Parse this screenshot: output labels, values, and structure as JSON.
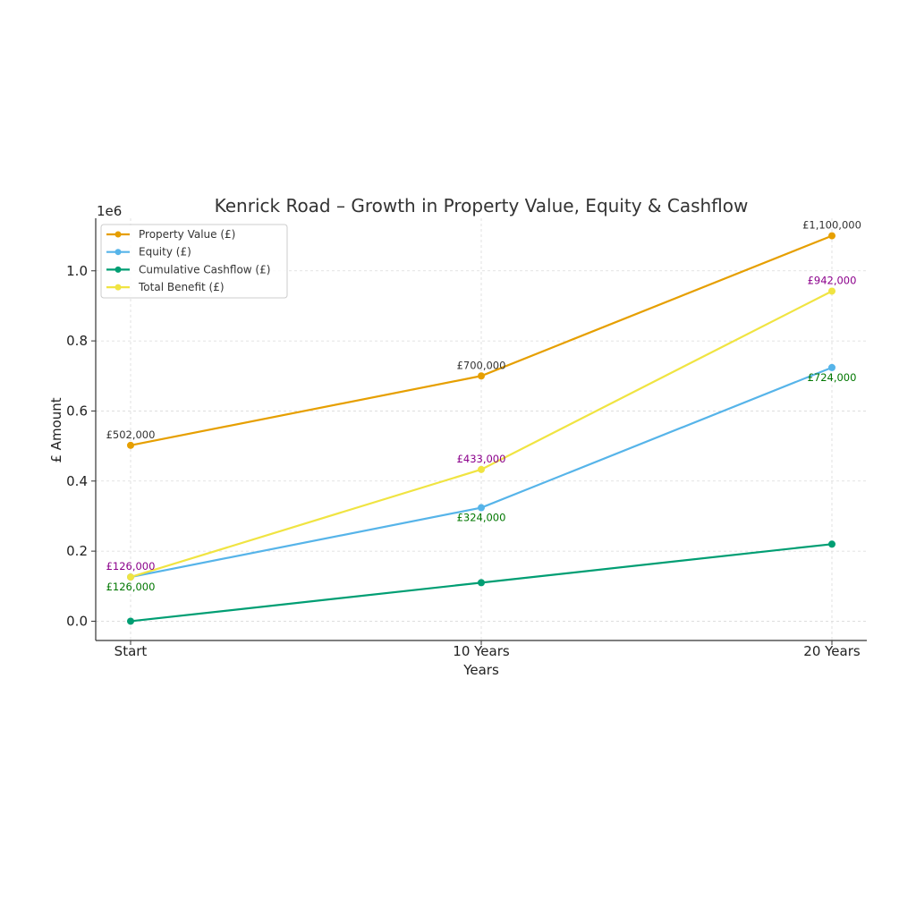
{
  "chart_data": {
    "type": "line",
    "title": "Kenrick Road – Growth in Property Value, Equity & Cashflow",
    "xlabel": "Years",
    "ylabel": "£ Amount",
    "y_offset_text": "1e6",
    "categories": [
      "Start",
      "10 Years",
      "20 Years"
    ],
    "ylim": [
      -55000,
      1150000
    ],
    "yticks": [
      0,
      200000,
      400000,
      600000,
      800000,
      1000000
    ],
    "ytick_labels": [
      "0.0",
      "0.2",
      "0.4",
      "0.6",
      "0.8",
      "1.0"
    ],
    "grid": true,
    "legend_position": "top-left",
    "series": [
      {
        "name": "Property Value (£)",
        "color": "#E69F00",
        "values": [
          502000,
          700000,
          1100000
        ]
      },
      {
        "name": "Equity (£)",
        "color": "#56B4E9",
        "values": [
          126000,
          324000,
          724000
        ]
      },
      {
        "name": "Cumulative Cashflow (£)",
        "color": "#009E73",
        "values": [
          0,
          110000,
          220000
        ]
      },
      {
        "name": "Total Benefit (£)",
        "color": "#F0E442",
        "values": [
          126000,
          433000,
          942000
        ]
      }
    ],
    "annotations": [
      {
        "text": "£502,000",
        "series": 0,
        "index": 0,
        "color": "#333333",
        "placement": "above"
      },
      {
        "text": "£700,000",
        "series": 0,
        "index": 1,
        "color": "#333333",
        "placement": "above"
      },
      {
        "text": "£1,100,000",
        "series": 0,
        "index": 2,
        "color": "#333333",
        "placement": "above"
      },
      {
        "text": "£126,000",
        "series": 3,
        "index": 0,
        "color": "#8B008B",
        "placement": "above"
      },
      {
        "text": "£433,000",
        "series": 3,
        "index": 1,
        "color": "#8B008B",
        "placement": "above"
      },
      {
        "text": "£942,000",
        "series": 3,
        "index": 2,
        "color": "#8B008B",
        "placement": "above"
      },
      {
        "text": "£126,000",
        "series": 1,
        "index": 0,
        "color": "#007700",
        "placement": "below"
      },
      {
        "text": "£324,000",
        "series": 1,
        "index": 1,
        "color": "#007700",
        "placement": "below"
      },
      {
        "text": "£724,000",
        "series": 1,
        "index": 2,
        "color": "#007700",
        "placement": "below"
      }
    ]
  }
}
